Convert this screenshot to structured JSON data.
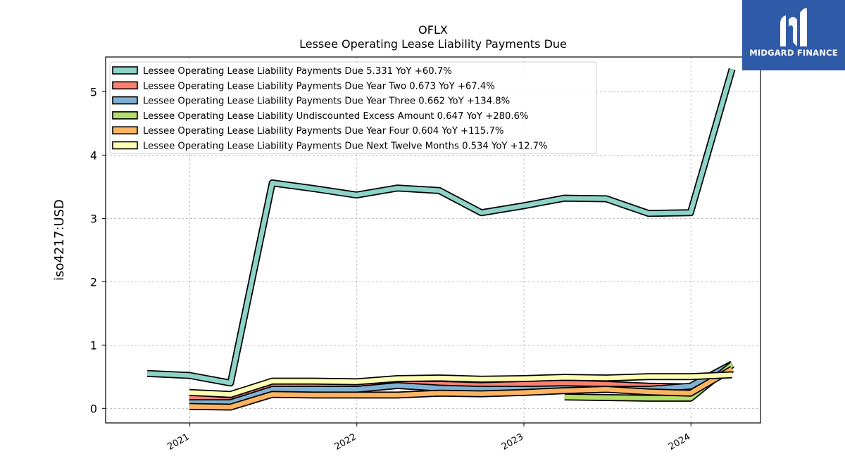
{
  "logo": {
    "text": "MIDGARD FINANCE",
    "brand_color": "#2f5aa8"
  },
  "chart_data": {
    "type": "line",
    "title": "OFLX",
    "subtitle": "Lessee Operating Lease Liability Payments Due",
    "ylabel": "iso4217:USD",
    "xlabel": "",
    "ylim": [
      -0.23,
      5.55
    ],
    "yticks": [
      "0",
      "1",
      "2",
      "3",
      "4",
      "5"
    ],
    "xticks": [
      "2021",
      "2022",
      "2023",
      "2024"
    ],
    "grid": true,
    "legend_position": "upper-left",
    "series": [
      {
        "name": "Lessee Operating Lease Liability Payments Due",
        "legend": "Lessee Operating Lease Liability Payments Due  5.331 YoY +60.7%",
        "color": "#8dd3c7",
        "points": [
          [
            "2020-09-30",
            0.55
          ],
          [
            "2020-12-31",
            0.52
          ],
          [
            "2021-03-31",
            0.4
          ],
          [
            "2021-06-30",
            3.56
          ],
          [
            "2021-09-30",
            3.47
          ],
          [
            "2021-12-31",
            3.37
          ],
          [
            "2022-03-31",
            3.48
          ],
          [
            "2022-06-30",
            3.44
          ],
          [
            "2022-09-30",
            3.09
          ],
          [
            "2022-12-31",
            3.2
          ],
          [
            "2023-03-31",
            3.32
          ],
          [
            "2023-06-30",
            3.31
          ],
          [
            "2023-09-30",
            3.08
          ],
          [
            "2023-12-31",
            3.09
          ],
          [
            "2024-03-31",
            5.36
          ]
        ]
      },
      {
        "name": "Lessee Operating Lease Liability Payments Due Year Two",
        "legend": "Lessee Operating Lease Liability Payments Due Year Two  0.673 YoY +67.4%",
        "color": "#fb8072",
        "points": [
          [
            "2020-12-31",
            0.17
          ],
          [
            "2021-03-31",
            0.12
          ],
          [
            "2021-06-30",
            0.34
          ],
          [
            "2021-09-30",
            0.35
          ],
          [
            "2021-12-31",
            0.33
          ],
          [
            "2022-03-31",
            0.38
          ],
          [
            "2022-06-30",
            0.38
          ],
          [
            "2022-09-30",
            0.36
          ],
          [
            "2022-12-31",
            0.38
          ],
          [
            "2023-03-31",
            0.4
          ],
          [
            "2023-06-30",
            0.38
          ],
          [
            "2023-09-30",
            0.35
          ],
          [
            "2023-12-31",
            0.34
          ],
          [
            "2024-03-31",
            0.69
          ]
        ]
      },
      {
        "name": "Lessee Operating Lease Liability Payments Due Year Three",
        "legend": "Lessee Operating Lease Liability Payments Due Year Three  0.662 YoY +134.8%",
        "color": "#80b1d3",
        "points": [
          [
            "2020-12-31",
            0.09
          ],
          [
            "2021-03-31",
            0.09
          ],
          [
            "2021-06-30",
            0.3
          ],
          [
            "2021-09-30",
            0.3
          ],
          [
            "2021-12-31",
            0.3
          ],
          [
            "2022-03-31",
            0.36
          ],
          [
            "2022-06-30",
            0.32
          ],
          [
            "2022-09-30",
            0.3
          ],
          [
            "2022-12-31",
            0.3
          ],
          [
            "2023-03-31",
            0.31
          ],
          [
            "2023-06-30",
            0.3
          ],
          [
            "2023-09-30",
            0.3
          ],
          [
            "2023-12-31",
            0.35
          ],
          [
            "2024-03-31",
            0.7
          ]
        ]
      },
      {
        "name": "Lessee Operating Lease Liability Undiscounted Excess Amount",
        "legend": "Lessee Operating Lease Liability Undiscounted Excess Amount  0.647 YoY +280.6%",
        "color": "#b3de69",
        "points": [
          [
            "2023-03-31",
            0.18
          ],
          [
            "2023-06-30",
            0.17
          ],
          [
            "2023-09-30",
            0.16
          ],
          [
            "2023-12-31",
            0.16
          ],
          [
            "2024-03-31",
            0.69
          ]
        ]
      },
      {
        "name": "Lessee Operating Lease Liability Payments Due Year Four",
        "legend": "Lessee Operating Lease Liability Payments Due Year Four  0.604 YoY +115.7%",
        "color": "#fdb462",
        "points": [
          [
            "2020-12-31",
            0.03
          ],
          [
            "2021-03-31",
            0.02
          ],
          [
            "2021-06-30",
            0.22
          ],
          [
            "2021-09-30",
            0.21
          ],
          [
            "2021-12-31",
            0.21
          ],
          [
            "2022-03-31",
            0.21
          ],
          [
            "2022-06-30",
            0.24
          ],
          [
            "2022-09-30",
            0.23
          ],
          [
            "2022-12-31",
            0.25
          ],
          [
            "2023-03-31",
            0.28
          ],
          [
            "2023-06-30",
            0.3
          ],
          [
            "2023-09-30",
            0.26
          ],
          [
            "2023-12-31",
            0.24
          ],
          [
            "2024-03-31",
            0.62
          ]
        ]
      },
      {
        "name": "Lessee Operating Lease Liability Payments Due Next Twelve Months",
        "legend": "Lessee Operating Lease Liability Payments Due Next Twelve Months  0.534 YoY +12.7%",
        "color": "#ffffb3",
        "points": [
          [
            "2020-12-31",
            0.25
          ],
          [
            "2021-03-31",
            0.22
          ],
          [
            "2021-06-30",
            0.43
          ],
          [
            "2021-09-30",
            0.43
          ],
          [
            "2021-12-31",
            0.42
          ],
          [
            "2022-03-31",
            0.47
          ],
          [
            "2022-06-30",
            0.48
          ],
          [
            "2022-09-30",
            0.46
          ],
          [
            "2022-12-31",
            0.47
          ],
          [
            "2023-03-31",
            0.49
          ],
          [
            "2023-06-30",
            0.48
          ],
          [
            "2023-09-30",
            0.5
          ],
          [
            "2023-12-31",
            0.5
          ],
          [
            "2024-03-31",
            0.53
          ]
        ]
      }
    ]
  }
}
